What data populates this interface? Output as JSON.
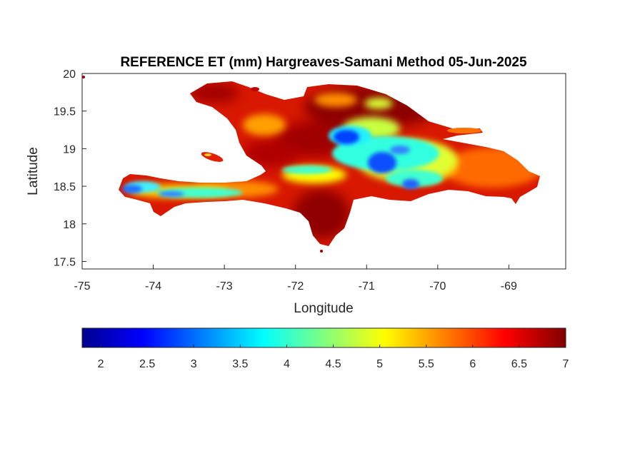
{
  "figure": {
    "title": "REFERENCE ET (mm) Hargreaves-Samani Method  05-Jun-2025"
  },
  "map": {
    "xlabel": "Longitude",
    "ylabel": "Latitude",
    "xlim": [
      -75,
      -68.2
    ],
    "ylim": [
      17.4,
      20
    ],
    "xticks": [
      "-75",
      "-74",
      "-73",
      "-72",
      "-71",
      "-70",
      "-69"
    ],
    "yticks": [
      "20",
      "19.5",
      "19",
      "18.5",
      "18",
      "17.5"
    ],
    "region_colors": {
      "dry_high": "#b80000",
      "mid": "#ffb000",
      "wet_low": "#2a70ff"
    }
  },
  "colorbar": {
    "min": 1.8,
    "max": 7,
    "ticks": [
      "2",
      "2.5",
      "3",
      "3.5",
      "4",
      "4.5",
      "5",
      "5.5",
      "6",
      "6.5",
      "7"
    ],
    "colormap": "jet",
    "stops": [
      "#00008f",
      "#0000ff",
      "#00ffff",
      "#ffff00",
      "#ff0000",
      "#800000"
    ]
  }
}
